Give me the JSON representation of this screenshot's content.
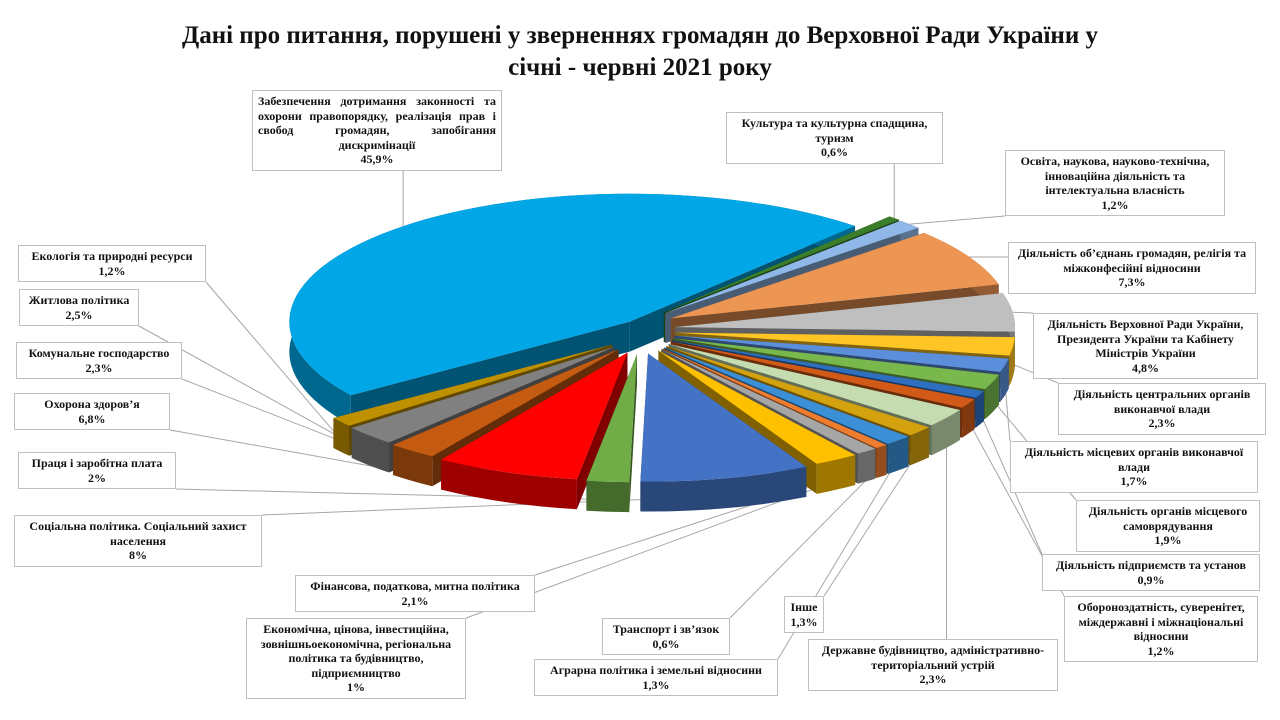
{
  "title": "Дані про питання, порушені у зверненнях громадян до Верховної Ради України у\nсічні - червні 2021 року",
  "chart_data": {
    "type": "pie",
    "title": "Дані про питання, порушені у зверненнях громадян до Верховної Ради України у січні - червні 2021 року",
    "unit": "%",
    "slices": [
      {
        "label": "Забезпечення дотримання законності та охорони правопорядку, реалізація прав і свобод громадян, запобігання дискримінації",
        "value": 45.9,
        "display": "45,9%",
        "color": "#00a6e6"
      },
      {
        "label": "Культура та культурна спадщина, туризм",
        "value": 0.6,
        "display": "0,6%",
        "color": "#3a7d2a"
      },
      {
        "label": "Освіта, наукова, науково-технічна, інноваційна діяльність та інтелектуальна власність",
        "value": 1.2,
        "display": "1,2%",
        "color": "#8fb8e8"
      },
      {
        "label": "Діяльність об’єднань громадян, релігія та міжконфесійні відносини",
        "value": 7.3,
        "display": "7,3%",
        "color": "#ed9552"
      },
      {
        "label": "Діяльність Верховної Ради України, Президента України та Кабінету Міністрів України",
        "value": 4.8,
        "display": "4,8%",
        "color": "#bfbfbf"
      },
      {
        "label": "Діяльність центральних органів виконавчої влади",
        "value": 2.3,
        "display": "2,3%",
        "color": "#ffc524"
      },
      {
        "label": "Діяльність місцевих органів виконавчої влади",
        "value": 1.7,
        "display": "1,7%",
        "color": "#5b8fdb"
      },
      {
        "label": "Діяльність органів місцевого самоврядування",
        "value": 1.9,
        "display": "1,9%",
        "color": "#78b84d"
      },
      {
        "label": "Діяльність підприємств та установ",
        "value": 0.9,
        "display": "0,9%",
        "color": "#2f6fc0"
      },
      {
        "label": "Обороноздатність, суверенітет, міждержавні і міжнаціональні відносини",
        "value": 1.2,
        "display": "1,2%",
        "color": "#d25a18"
      },
      {
        "label": "Державне будівництво, адміністративно-територіальний устрій",
        "value": 2.3,
        "display": "2,3%",
        "color": "#c5dcb0"
      },
      {
        "label": "Інше",
        "value": 1.3,
        "display": "1,3%",
        "color": "#d4a20e"
      },
      {
        "label": "Аграрна політика і земельні відносини",
        "value": 1.3,
        "display": "1,3%",
        "color": "#3b8fd6"
      },
      {
        "label": "Транспорт і зв’язок",
        "value": 0.6,
        "display": "0,6%",
        "color": "#ef7d30"
      },
      {
        "label": "Економічна, цінова, інвестиційна, зовнішньоекономічна, регіональна політика та будівництво, підприємництво",
        "value": 1.0,
        "display": "1%",
        "color": "#a6a6a6"
      },
      {
        "label": "Фінансова, податкова, митна політика",
        "value": 2.1,
        "display": "2,1%",
        "color": "#ffc000"
      },
      {
        "label": "Соціальна політика. Соціальний захист населення",
        "value": 8.0,
        "display": "8%",
        "color": "#4472c4"
      },
      {
        "label": "Праця і заробітна плата",
        "value": 2.0,
        "display": "2%",
        "color": "#70ad47"
      },
      {
        "label": "Охорона здоров’я",
        "value": 6.8,
        "display": "6,8%",
        "color": "#ff0000"
      },
      {
        "label": "Комунальне господарство",
        "value": 2.3,
        "display": "2,3%",
        "color": "#c55a11"
      },
      {
        "label": "Житлова політика",
        "value": 2.5,
        "display": "2,5%",
        "color": "#808080"
      },
      {
        "label": "Екологія та природні ресурси",
        "value": 1.2,
        "display": "1,2%",
        "color": "#bf9000"
      }
    ],
    "legend": "none"
  },
  "labels": [
    {
      "text": "Забезпечення дотримання законності та охорони правопорядку, реалізація прав і свобод громадян, запобігання дискримінації",
      "pct": "45,9%"
    },
    {
      "text": "Культура та культурна спадщина, туризм",
      "pct": "0,6%"
    },
    {
      "text": "Освіта, наукова, науково-технічна, інноваційна діяльність та інтелектуальна власність",
      "pct": "1,2%"
    },
    {
      "text": "Діяльність об’єднань громадян, релігія та міжконфесійні відносини",
      "pct": "7,3%"
    },
    {
      "text": "Діяльність Верховної Ради України, Президента України та Кабінету Міністрів України",
      "pct": "4,8%"
    },
    {
      "text": "Діяльність центральних органів виконавчої влади",
      "pct": "2,3%"
    },
    {
      "text": "Діяльність місцевих органів виконавчої влади",
      "pct": "1,7%"
    },
    {
      "text": "Діяльність органів місцевого самоврядування",
      "pct": "1,9%"
    },
    {
      "text": "Діяльність підприємств та установ",
      "pct": "0,9%"
    },
    {
      "text": "Обороноздатність, суверенітет, міждержавні і міжнаціональні відносини",
      "pct": "1,2%"
    },
    {
      "text": "Державне будівництво, адміністративно-територіальний устрій",
      "pct": "2,3%"
    },
    {
      "text": "Інше",
      "pct": "1,3%"
    },
    {
      "text": "Аграрна політика і земельні відносини",
      "pct": "1,3%"
    },
    {
      "text": "Транспорт і зв’язок",
      "pct": "0,6%"
    },
    {
      "text": "Економічна, цінова, інвестиційна, зовнішньоекономічна, регіональна політика та будівництво, підприємництво",
      "pct": "1%"
    },
    {
      "text": "Фінансова, податкова, митна політика",
      "pct": "2,1%"
    },
    {
      "text": "Соціальна політика. Соціальний захист населення",
      "pct": "8%"
    },
    {
      "text": "Праця і заробітна плата",
      "pct": "2%"
    },
    {
      "text": "Охорона здоров’я",
      "pct": "6,8%"
    },
    {
      "text": "Комунальне господарство",
      "pct": "2,3%"
    },
    {
      "text": "Житлова політика",
      "pct": "2,5%"
    },
    {
      "text": "Екологія та природні ресурси",
      "pct": "1,2%"
    }
  ]
}
